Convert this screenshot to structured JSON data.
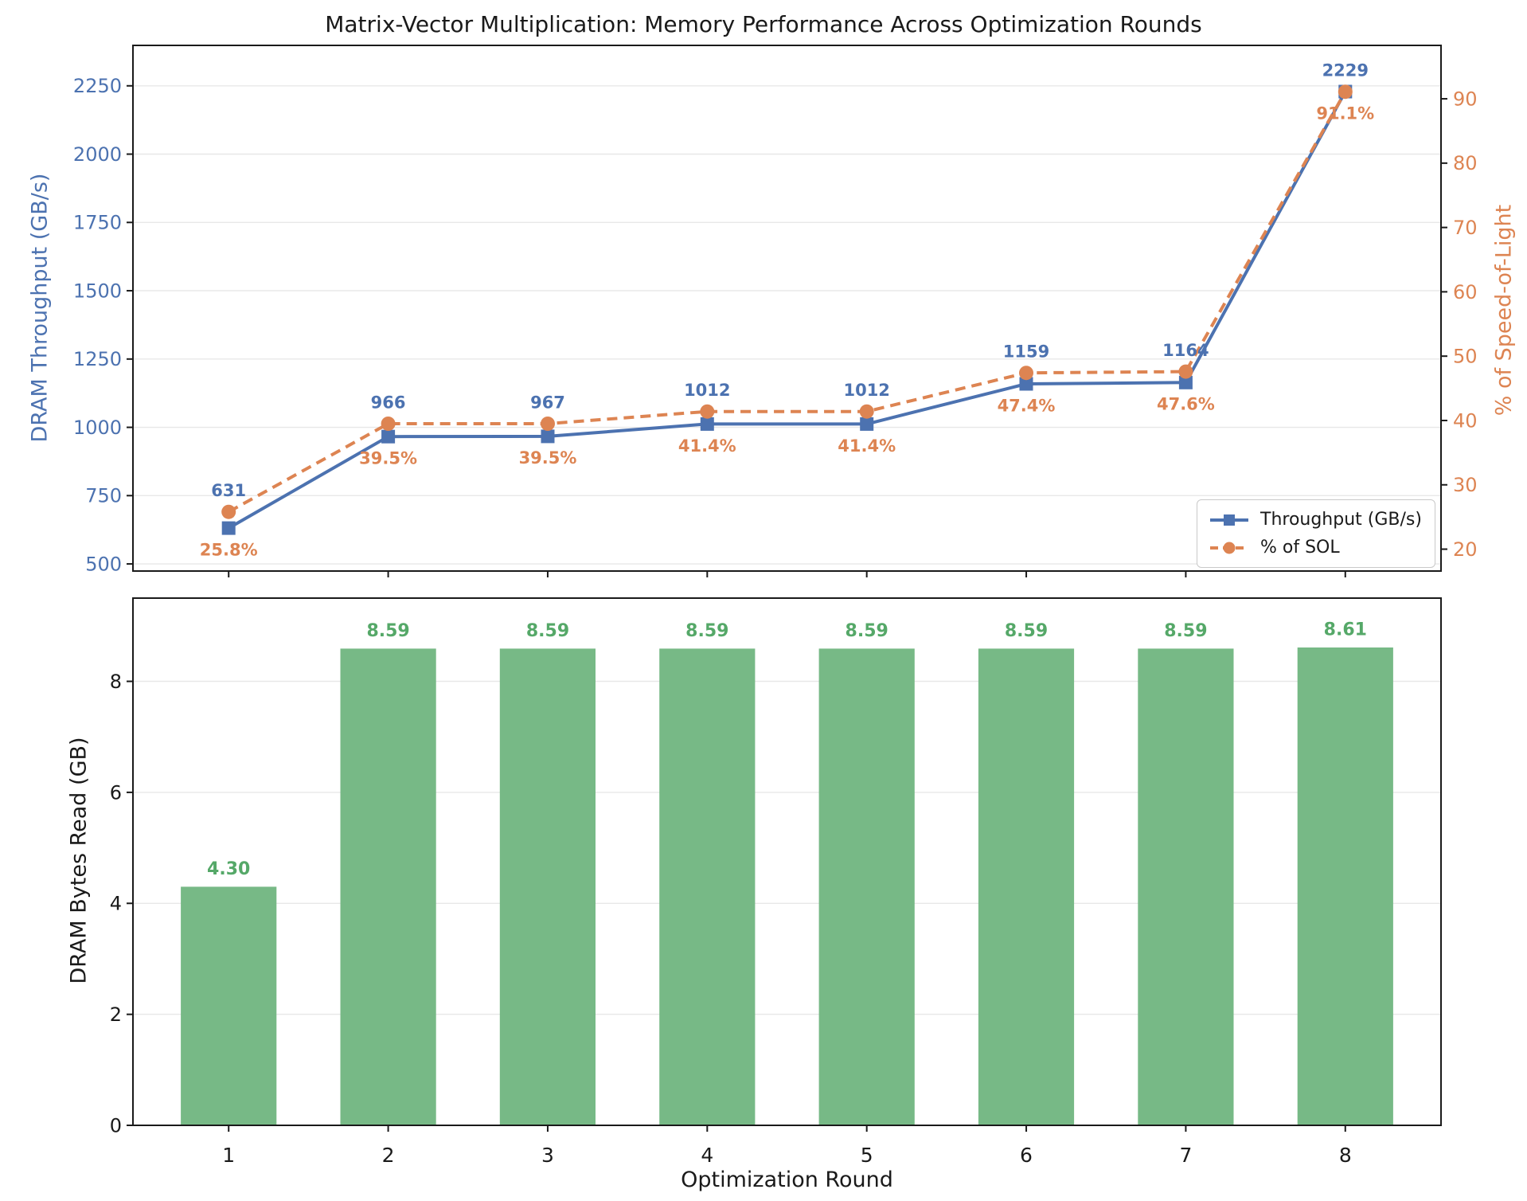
{
  "title": "Matrix-Vector Multiplication: Memory Performance Across Optimization Rounds",
  "colors": {
    "blue": "#4C72B0",
    "orange": "#DD8452",
    "bar_fill": "#77B986",
    "bar_label": "#55A868",
    "grid": "#E8E8E8",
    "axis": "#1a1a1a"
  },
  "chart_data": [
    {
      "type": "line",
      "x": [
        1,
        2,
        3,
        4,
        5,
        6,
        7,
        8
      ],
      "series": [
        {
          "name": "Throughput (GB/s)",
          "axis": "left",
          "marker": "square",
          "linestyle": "solid",
          "color_key": "blue",
          "values": [
            631,
            966,
            967,
            1012,
            1012,
            1159,
            1164,
            2229
          ],
          "point_labels": [
            "631",
            "966",
            "967",
            "1012",
            "1012",
            "1159",
            "1164",
            "2229"
          ]
        },
        {
          "name": "% of SOL",
          "axis": "right",
          "marker": "circle",
          "linestyle": "dashed",
          "color_key": "orange",
          "values": [
            25.8,
            39.5,
            39.5,
            41.4,
            41.4,
            47.4,
            47.6,
            91.1
          ],
          "point_labels": [
            "25.8%",
            "39.5%",
            "39.5%",
            "41.4%",
            "41.4%",
            "47.4%",
            "47.6%",
            "91.1%"
          ]
        }
      ],
      "left_axis": {
        "label": "DRAM Throughput (GB/s)",
        "ticks": [
          500,
          750,
          1000,
          1250,
          1500,
          1750,
          2000,
          2250
        ],
        "range": [
          474,
          2398
        ]
      },
      "right_axis": {
        "label": "% of Speed-of-Light",
        "ticks": [
          20,
          30,
          40,
          50,
          60,
          70,
          80,
          90
        ],
        "range": [
          16.6,
          98.3
        ]
      },
      "x_range": [
        0.4,
        8.6
      ],
      "grid": true,
      "legend_position": "lower right"
    },
    {
      "type": "bar",
      "categories": [
        "1",
        "2",
        "3",
        "4",
        "5",
        "6",
        "7",
        "8"
      ],
      "values": [
        4.3,
        8.59,
        8.59,
        8.59,
        8.59,
        8.59,
        8.59,
        8.61
      ],
      "bar_labels": [
        "4.30",
        "8.59",
        "8.59",
        "8.59",
        "8.59",
        "8.59",
        "8.59",
        "8.61"
      ],
      "xlabel": "Optimization Round",
      "ylabel": "DRAM Bytes Read (GB)",
      "yticks": [
        0,
        2,
        4,
        6,
        8
      ],
      "y_range": [
        0,
        9.5
      ],
      "x_range": [
        0.4,
        8.6
      ],
      "bar_width": 0.6,
      "grid": true
    }
  ]
}
